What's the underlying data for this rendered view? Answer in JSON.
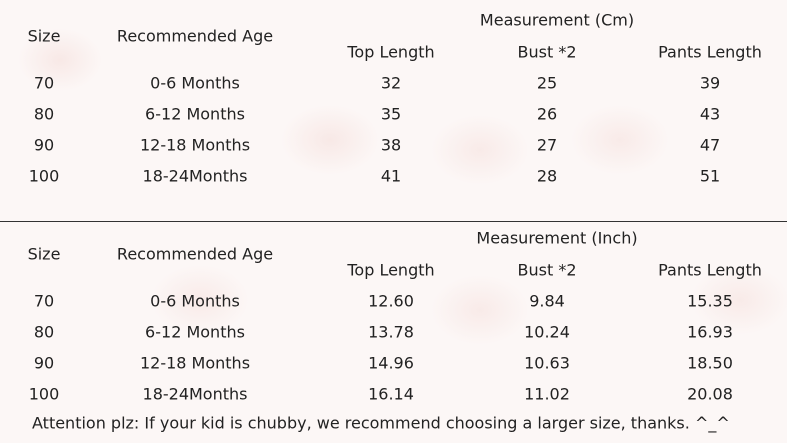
{
  "tables": [
    {
      "measurement_title": "Measurement (Cm)",
      "headers": [
        "Size",
        "Recommended Age",
        "Top Length",
        "Bust *2",
        "Pants Length"
      ],
      "rows": [
        [
          "70",
          "0-6 Months",
          "32",
          "25",
          "39"
        ],
        [
          "80",
          "6-12 Months",
          "35",
          "26",
          "43"
        ],
        [
          "90",
          "12-18 Months",
          "38",
          "27",
          "47"
        ],
        [
          "100",
          "18-24Months",
          "41",
          "28",
          "51"
        ]
      ]
    },
    {
      "measurement_title": "Measurement (Inch)",
      "headers": [
        "Size",
        "Recommended Age",
        "Top Length",
        "Bust *2",
        "Pants Length"
      ],
      "rows": [
        [
          "70",
          "0-6 Months",
          "12.60",
          "9.84",
          "15.35"
        ],
        [
          "80",
          "6-12 Months",
          "13.78",
          "10.24",
          "16.93"
        ],
        [
          "90",
          "12-18 Months",
          "14.96",
          "10.63",
          "18.50"
        ],
        [
          "100",
          "18-24Months",
          "16.14",
          "11.02",
          "20.08"
        ]
      ]
    }
  ],
  "note": "Attention plz: If your kid is chubby, we recommend choosing a larger size, thanks. ^_^"
}
